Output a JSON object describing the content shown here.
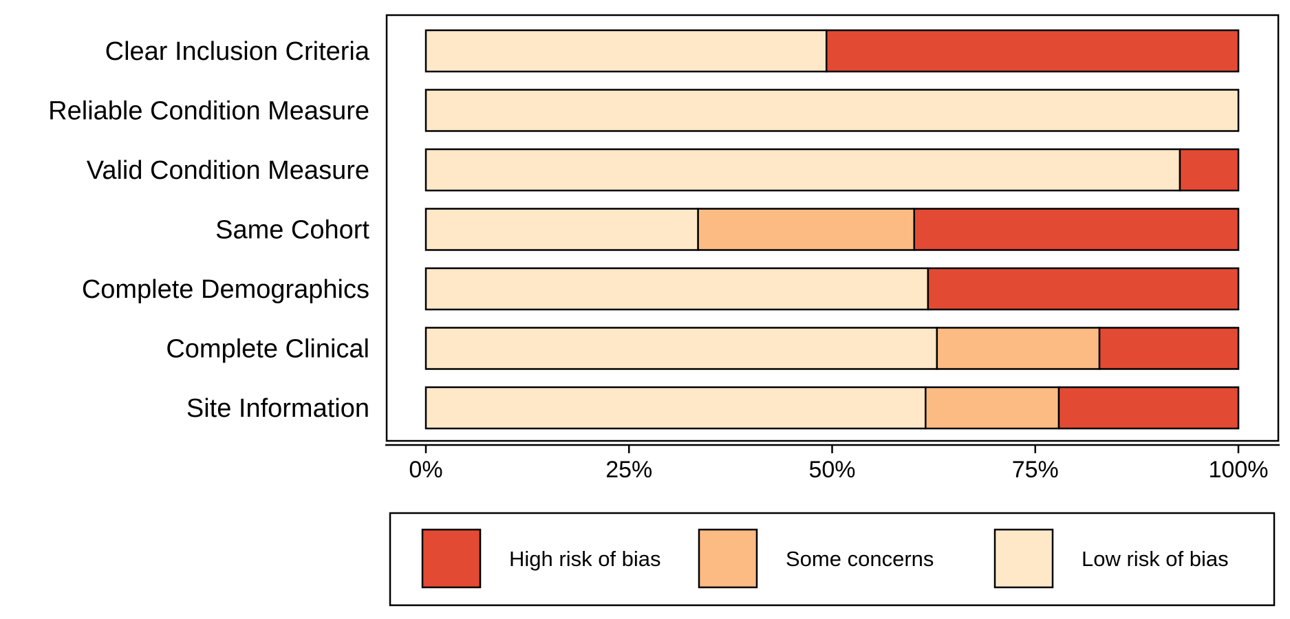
{
  "chart_data": {
    "type": "bar",
    "orientation": "horizontal",
    "stacked": true,
    "categories": [
      "Clear Inclusion Criteria",
      "Reliable Condition Measure",
      "Valid Condition Measure",
      "Same Cohort",
      "Complete Demographics",
      "Complete Clinical",
      "Site Information"
    ],
    "series": [
      {
        "name": "Low risk of bias",
        "color": "#FEE8C8",
        "values": [
          49.3,
          100,
          92.8,
          33.5,
          61.8,
          62.9,
          61.5
        ]
      },
      {
        "name": "Some concerns",
        "color": "#FDBB84",
        "values": [
          0,
          0,
          0,
          26.6,
          0,
          20.0,
          16.4
        ]
      },
      {
        "name": "High risk of bias",
        "color": "#E34A33",
        "values": [
          50.7,
          0,
          7.2,
          39.9,
          38.2,
          17.1,
          22.1
        ]
      }
    ],
    "xlim": [
      0,
      100
    ],
    "ticks": [
      "0%",
      "25%",
      "50%",
      "75%",
      "100%"
    ],
    "tick_values": [
      0,
      25,
      50,
      75,
      100
    ],
    "title": "",
    "xlabel": "",
    "ylabel": "",
    "grid": false,
    "legend": {
      "position": "bottom",
      "order": [
        "High risk of bias",
        "Some concerns",
        "Low risk of bias"
      ]
    }
  }
}
